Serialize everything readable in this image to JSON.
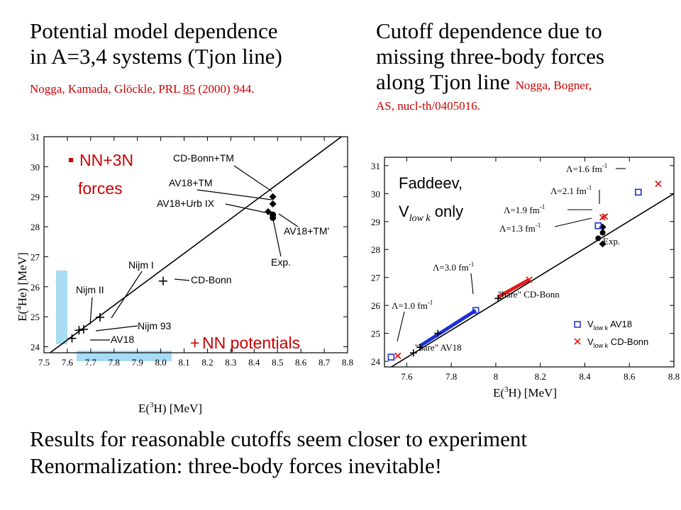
{
  "left_title": {
    "line1": "Potential model dependence",
    "line2": "in A=3,4 systems (Tjon line)",
    "cite_pre": "Nogga, Kamada, Glöckle, PRL ",
    "cite_vol": "85",
    "cite_post": " (2000) 944."
  },
  "right_title": {
    "line1": "Cutoff dependence due to",
    "line2": "missing three-body forces",
    "line3": "along Tjon line",
    "cite_a": "Nogga, Bogner,",
    "cite_b": "AS, nucl-th/0405016."
  },
  "conclusions": [
    "Results for reasonable cutoffs seem closer to experiment",
    "Renormalization: three-body forces inevitable!"
  ],
  "colors": {
    "cite": "#cc0000",
    "highlight": "#a8dcf5",
    "vlowk_av18": "#1a2fd6",
    "vlowk_cdbonn": "#e01b1b"
  },
  "chart_data": [
    {
      "type": "scatter",
      "xlabel": "E(3H) [MeV]",
      "ylabel": "E(4He) [MeV]",
      "xlim": [
        7.5,
        8.8
      ],
      "ylim": [
        23.8,
        31
      ],
      "xticks": [
        "7.5",
        "7.6",
        "7.7",
        "7.8",
        "7.9",
        "8.0",
        "8.1",
        "8.2",
        "8.3",
        "8.4",
        "8.5",
        "8.6",
        "8.7",
        "8.8"
      ],
      "yticks": [
        "24",
        "25",
        "26",
        "27",
        "28",
        "29",
        "30",
        "31"
      ],
      "tjon_line": [
        [
          7.5,
          23.65
        ],
        [
          8.8,
          31.15
        ]
      ],
      "legend": {
        "three_n": "NN+3N",
        "three_n_2": "forces",
        "nn": "NN potentials"
      },
      "nn_points": [
        {
          "name": "AV18",
          "x": 7.62,
          "y": 24.28
        },
        {
          "name": "Nijm II",
          "x": 7.65,
          "y": 24.55
        },
        {
          "name": "Nijm 93",
          "x": 7.67,
          "y": 24.58
        },
        {
          "name": "Nijm I",
          "x": 7.74,
          "y": 24.98
        },
        {
          "name": "CD-Bonn",
          "x": 8.01,
          "y": 26.19
        }
      ],
      "three_n_points": [
        {
          "name": "CD-Bonn+TM",
          "x": 8.48,
          "y": 29.0
        },
        {
          "name": "AV18+TM",
          "x": 8.48,
          "y": 28.76
        },
        {
          "name": "AV18+Urb IX",
          "x": 8.46,
          "y": 28.5
        },
        {
          "name": "AV18+TM'",
          "x": 8.48,
          "y": 28.4
        },
        {
          "name": "Exp.",
          "x": 8.48,
          "y": 28.3
        }
      ],
      "labels": {
        "cdbonn_tm": "CD-Bonn+TM",
        "av18_tm": "AV18+TM",
        "av18_urb": "AV18+Urb IX",
        "av18_tmp": "AV18+TM'",
        "exp": "Exp.",
        "nijm1": "Nijm I",
        "cdbonn": "CD-Bonn",
        "nijm2": "Nijm II",
        "nijm93": "Nijm 93",
        "av18": "AV18"
      }
    },
    {
      "type": "scatter",
      "xlabel": "E(3H) [MeV]",
      "ylim": [
        23.8,
        31.3
      ],
      "xlim": [
        7.5,
        8.8
      ],
      "xticks": [
        "7.6",
        "7.8",
        "8",
        "8.2",
        "8.4",
        "8.6",
        "8.8"
      ],
      "yticks": [
        "24",
        "25",
        "26",
        "27",
        "28",
        "29",
        "30",
        "31"
      ],
      "tjon_line": [
        [
          7.5,
          23.65
        ],
        [
          8.8,
          30.0
        ]
      ],
      "inset": {
        "line1": "Faddeev,",
        "v": "V",
        "sub": "low k",
        "only": " only"
      },
      "lambda_labels": {
        "l16": "Λ=1.6 fm",
        "l21": "Λ=2.1 fm",
        "l19": "Λ=1.9 fm",
        "l13": "Λ=1.3 fm",
        "l30": "Λ=3.0 fm",
        "l10": "Λ=1.0 fm",
        "exp": "Exp.",
        "bare_cdbonn": "\"bare\" CD-Bonn",
        "bare_av18": "\"bare\" AV18",
        "exponent": "-1"
      },
      "legend": {
        "av18_v": "V",
        "av18_sub": "low k",
        "av18_name": " AV18",
        "cd_v": "V",
        "cd_sub": "low k",
        "cd_name": " CD-Bonn"
      },
      "series": [
        {
          "name": "Vlowk AV18",
          "marker": "square",
          "points": [
            [
              7.53,
              24.15
            ],
            [
              7.91,
              25.82
            ],
            [
              8.46,
              28.85
            ],
            [
              8.64,
              30.05
            ]
          ]
        },
        {
          "name": "Vlowk CD-Bonn",
          "marker": "x",
          "points": [
            [
              7.56,
              24.2
            ],
            [
              8.15,
              26.92
            ],
            [
              8.48,
              29.15
            ],
            [
              8.49,
              29.18
            ],
            [
              8.73,
              30.35
            ]
          ]
        }
      ],
      "exp_points": [
        [
          8.46,
          28.4
        ],
        [
          8.48,
          28.2
        ],
        [
          8.48,
          28.6
        ],
        [
          8.48,
          28.8
        ]
      ],
      "bare_points": [
        [
          7.63,
          24.3
        ],
        [
          7.66,
          24.5
        ],
        [
          7.74,
          25.0
        ],
        [
          8.01,
          26.25
        ]
      ],
      "lowk_bands": [
        {
          "color": "#1a2fd6",
          "from": [
            7.66,
            24.55
          ],
          "to": [
            7.91,
            25.82
          ]
        },
        {
          "color": "#e01b1b",
          "from": [
            8.01,
            26.3
          ],
          "to": [
            8.15,
            26.92
          ]
        }
      ]
    }
  ]
}
